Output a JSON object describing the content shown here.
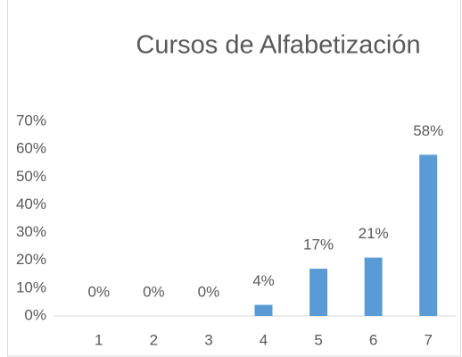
{
  "chart_data": {
    "type": "bar",
    "title": "Cursos de Alfabetización",
    "categories": [
      "1",
      "2",
      "3",
      "4",
      "5",
      "6",
      "7"
    ],
    "values": [
      0,
      0,
      0,
      4,
      17,
      21,
      58
    ],
    "value_labels": [
      "0%",
      "0%",
      "0%",
      "4%",
      "17%",
      "21%",
      "58%"
    ],
    "color": "#5b9bd5",
    "ylim": [
      0,
      70
    ],
    "yticks": [
      {
        "value": 0,
        "label": "0%"
      },
      {
        "value": 10,
        "label": "10%"
      },
      {
        "value": 20,
        "label": "20%"
      },
      {
        "value": 30,
        "label": "30%"
      },
      {
        "value": 40,
        "label": "40%"
      },
      {
        "value": 50,
        "label": "50%"
      },
      {
        "value": 60,
        "label": "60%"
      },
      {
        "value": 70,
        "label": "70%"
      }
    ],
    "grid": false
  }
}
